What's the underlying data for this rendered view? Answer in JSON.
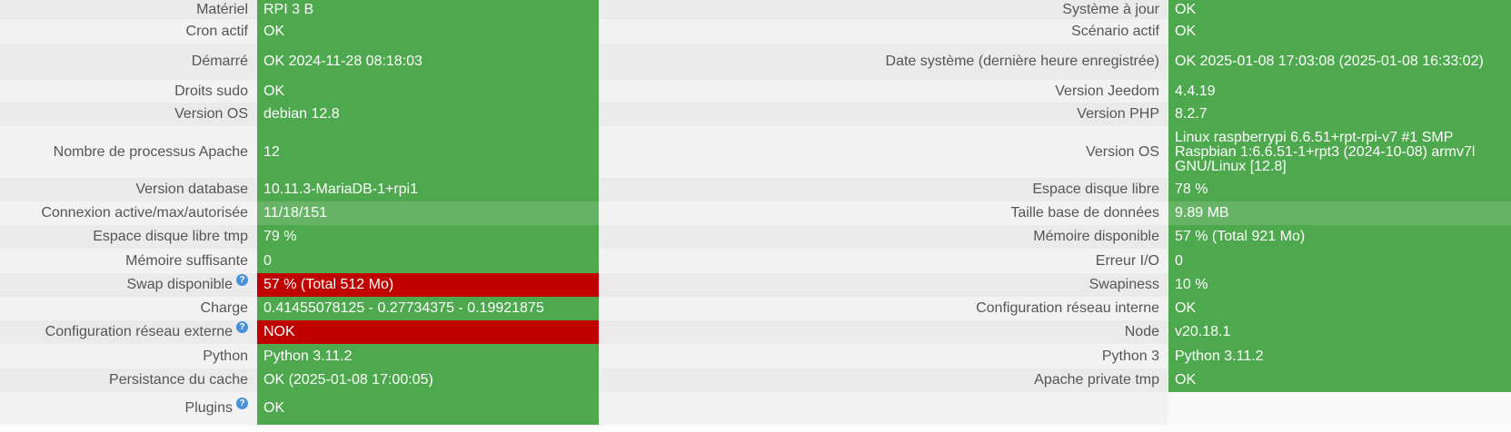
{
  "rows": [
    {
      "left_label": "Matériel",
      "left_value": "RPI 3 B",
      "right_label": "Système à jour",
      "right_value": "OK"
    },
    {
      "left_label": "Cron actif",
      "left_value": "OK",
      "right_label": "Scénario actif",
      "right_value": "OK"
    },
    {
      "left_label": "Démarré",
      "left_value": "OK 2024-11-28 08:18:03",
      "right_label": "Date système (dernière heure enregistrée)",
      "right_value": "OK 2025-01-08 17:03:08 (2025-01-08 16:33:02)"
    },
    {
      "left_label": "Droits sudo",
      "left_value": "OK",
      "right_label": "Version Jeedom",
      "right_value": "4.4.19"
    },
    {
      "left_label": "Version OS",
      "left_value": "debian 12.8",
      "right_label": "Version PHP",
      "right_value": "8.2.7"
    },
    {
      "left_label": "Nombre de processus Apache",
      "left_value": "12",
      "right_label": "Version OS",
      "right_value": "Linux raspberrypi 6.6.51+rpt-rpi-v7 #1 SMP Raspbian 1:6.6.51-1+rpt3 (2024-10-08) armv7l GNU/Linux [12.8]"
    },
    {
      "left_label": "Version database",
      "left_value": "10.11.3-MariaDB-1+rpi1",
      "right_label": "Espace disque libre",
      "right_value": "78 %"
    },
    {
      "left_label": "Connexion active/max/autorisée",
      "left_value": "11/18/151",
      "right_label": "Taille base de données",
      "right_value": "9.89 MB"
    },
    {
      "left_label": "Espace disque libre tmp",
      "left_value": "79 %",
      "right_label": "Mémoire disponible",
      "right_value": "57 % (Total 921 Mo)"
    },
    {
      "left_label": "Mémoire suffisante",
      "left_value": "0",
      "right_label": "Erreur I/O",
      "right_value": "0"
    },
    {
      "left_label": "Swap disponible",
      "left_value": "57 % (Total 512 Mo)",
      "right_label": "Swapiness",
      "right_value": "10 %"
    },
    {
      "left_label": "Charge",
      "left_value": "0.41455078125 - 0.27734375 - 0.19921875",
      "right_label": "Configuration réseau interne",
      "right_value": "OK"
    },
    {
      "left_label": "Configuration réseau externe",
      "left_value": "NOK",
      "right_label": "Node",
      "right_value": "v20.18.1"
    },
    {
      "left_label": "Python",
      "left_value": "Python 3.11.2",
      "right_label": "Python 3",
      "right_value": "Python 3.11.2"
    },
    {
      "left_label": "Persistance du cache",
      "left_value": "OK (2025-01-08 17:00:05)",
      "right_label": "Apache private tmp",
      "right_value": "OK"
    },
    {
      "left_label": "Plugins",
      "left_value": "OK",
      "right_label": "",
      "right_value": ""
    }
  ],
  "help_icon_glyph": "?",
  "colors": {
    "ok": "#4ea84e",
    "ok_light": "#67b467",
    "error": "#c00000",
    "label_bg": "#eaeaea",
    "label_text": "#555555",
    "help": "#4a90d9"
  }
}
